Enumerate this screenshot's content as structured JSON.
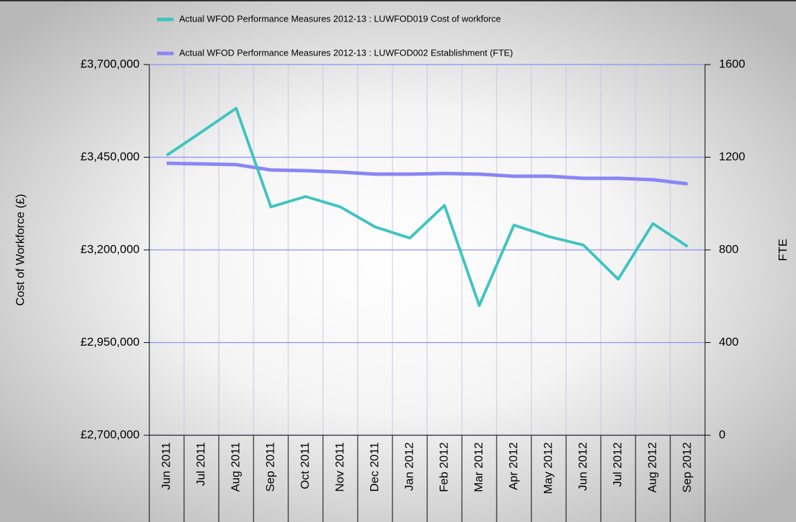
{
  "chart_data": {
    "type": "line",
    "y_label": "Cost of Workforce (£)",
    "y2_label": "FTE",
    "categories": [
      "Jun 2011",
      "Jul 2011",
      "Aug 2011",
      "Sep 2011",
      "Oct 2011",
      "Nov 2011",
      "Dec 2011",
      "Jan 2012",
      "Feb 2012",
      "Mar 2012",
      "Apr 2012",
      "May 2012",
      "Jun 2012",
      "Jul 2012",
      "Aug 2012",
      "Sep 2012"
    ],
    "series": [
      {
        "name": "Actual WFOD Performance Measures 2012-13 : LUWFOD019 Cost of workforce",
        "color": "#3fc4c0",
        "values": [
          3455000,
          3518000,
          3582000,
          3316000,
          3344000,
          3316000,
          3262000,
          3232000,
          3320000,
          3050000,
          3267000,
          3236000,
          3213000,
          3121000,
          3271000,
          3209000
        ]
      },
      {
        "name": "Actual WFOD Performance Measures 2012-13 : LUWFOD002 Establishment (FTE)",
        "color": "#8a86f4",
        "axis": "y2",
        "values": [
          1174,
          1171,
          1168,
          1145,
          1142,
          1136,
          1127,
          1127,
          1130,
          1127,
          1118,
          1118,
          1109,
          1109,
          1103,
          1085
        ]
      }
    ],
    "ylim": [
      2700000,
      3700000
    ],
    "yticks": [
      {
        "value": 2700000,
        "label": "£2,700,000"
      },
      {
        "value": 2950000,
        "label": "£2,950,000"
      },
      {
        "value": 3200000,
        "label": "£3,200,000"
      },
      {
        "value": 3450000,
        "label": "£3,450,000"
      },
      {
        "value": 3700000,
        "label": "£3,700,000"
      }
    ],
    "y2lim": [
      0,
      1600
    ],
    "y2ticks": [
      0,
      400,
      800,
      1200,
      1600
    ],
    "grid": true
  }
}
